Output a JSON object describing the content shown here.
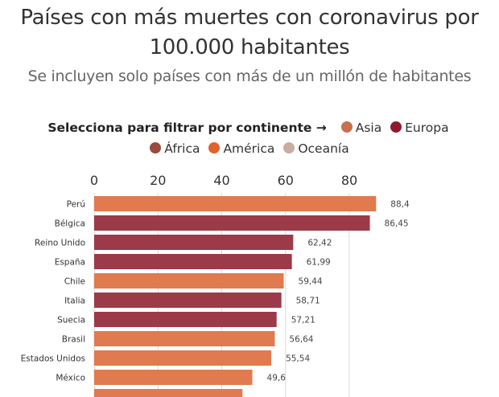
{
  "header": {
    "title_line1": "Países con más muertes con coronavirus por",
    "title_line2": "100.000 habitantes",
    "subtitle": "Se incluyen solo países con más de un millón de habitantes"
  },
  "legend": {
    "title": "Selecciona para filtrar por continente →",
    "items": [
      {
        "label": "Asia",
        "color": "#c8704f"
      },
      {
        "label": "Europa",
        "color": "#8e1c2e"
      },
      {
        "label": "África",
        "color": "#9a4a3e"
      },
      {
        "label": "América",
        "color": "#e0622e"
      },
      {
        "label": "Oceanía",
        "color": "#c9ada0"
      }
    ]
  },
  "chart_data": {
    "type": "bar",
    "orientation": "horizontal",
    "title": "Países con más muertes con coronavirus por 100.000 habitantes",
    "subtitle": "Se incluyen solo países con más de un millón de habitantes",
    "xlabel": "",
    "ylabel": "",
    "xlim": [
      0,
      90
    ],
    "xticks": [
      0,
      20,
      40,
      60,
      80
    ],
    "x_axis_position": "top",
    "grid": true,
    "legend_position": "top-center",
    "categories": [
      "Perú",
      "Bélgica",
      "Reino Unido",
      "España",
      "Chile",
      "Italia",
      "Suecia",
      "Brasil",
      "Estados Unidos",
      "México"
    ],
    "values": [
      88.4,
      86.45,
      62.42,
      61.99,
      59.44,
      58.71,
      57.21,
      56.64,
      55.54,
      49.6
    ],
    "value_labels": [
      "88,4",
      "86,45",
      "62,42",
      "61,99",
      "59,44",
      "58,71",
      "57,21",
      "56,64",
      "55,54",
      "49,6"
    ],
    "continents": [
      "América",
      "Europa",
      "Europa",
      "Europa",
      "America",
      "Europa",
      "Europa",
      "América",
      "América",
      "América"
    ],
    "bar_colors": {
      "América": "#e07a4f",
      "Europa": "#9c3a4a"
    },
    "partial_next_bar": {
      "color": "#e07a4f",
      "approx_value": 46.5
    }
  }
}
